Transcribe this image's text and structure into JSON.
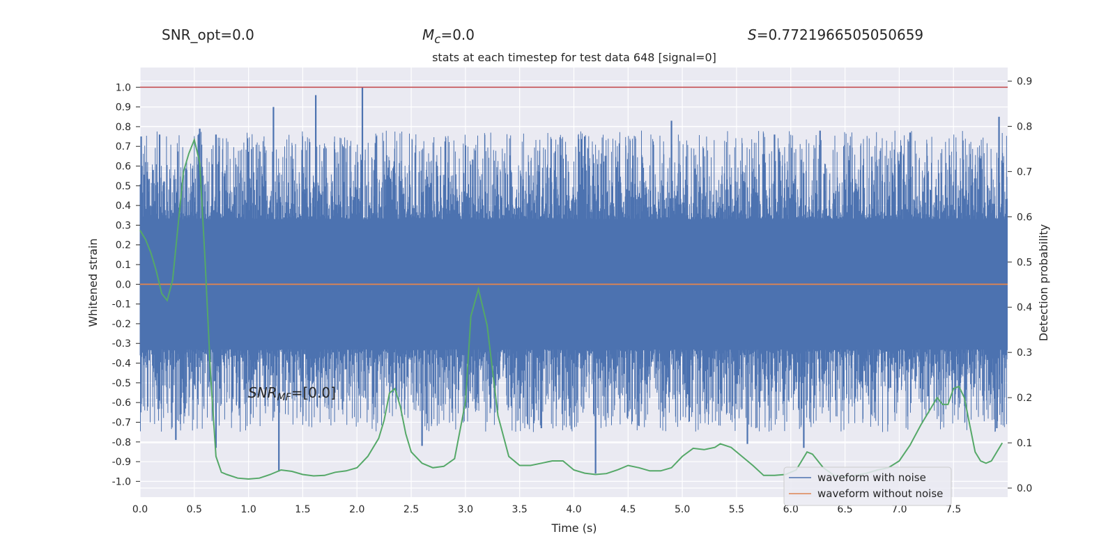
{
  "header": {
    "snr_opt": "SNR_opt=0.0",
    "mc_symbol": "M",
    "mc_sub": "c",
    "mc_value": "=0.0",
    "s_symbol": "S",
    "s_value": "=0.7721966505050659"
  },
  "chart_data": {
    "type": "line",
    "title": "stats at each timestep for test data 648 [signal=0]",
    "xlabel": "Time (s)",
    "ylabel_left": "Whitened strain",
    "ylabel_right": "Detection probability",
    "xlim": [
      0.0,
      8.0
    ],
    "ylim_left": [
      -1.08,
      1.1
    ],
    "ylim_right": [
      -0.02,
      0.93
    ],
    "x_ticks": [
      "0.0",
      "0.5",
      "1.0",
      "1.5",
      "2.0",
      "2.5",
      "3.0",
      "3.5",
      "4.0",
      "4.5",
      "5.0",
      "5.5",
      "6.0",
      "6.5",
      "7.0",
      "7.5"
    ],
    "y_ticks_left": [
      "1.0",
      "0.9",
      "0.8",
      "0.7",
      "0.6",
      "0.5",
      "0.4",
      "0.3",
      "0.2",
      "0.1",
      "0.0",
      "-0.1",
      "-0.2",
      "-0.3",
      "-0.4",
      "-0.5",
      "-0.6",
      "-0.7",
      "-0.8",
      "-0.9",
      "-1.0"
    ],
    "y_ticks_right": [
      "0.9",
      "0.8",
      "0.7",
      "0.6",
      "0.5",
      "0.4",
      "0.3",
      "0.2",
      "0.1",
      "0.0"
    ],
    "grid": true,
    "legend_position": "lower-right",
    "annotation": {
      "text_main": "SNR",
      "text_sub": "MF",
      "text_value": "=[0.0]",
      "x": 1.0,
      "y": -0.56
    },
    "threshold": {
      "y": 1.0,
      "color": "#c44e52"
    },
    "series": [
      {
        "name": "waveform with noise",
        "axis": "left",
        "color": "#4c72b0",
        "noise_band": 0.33,
        "peaks": [
          {
            "x": 0.01,
            "y": 0.75
          },
          {
            "x": 0.12,
            "y": 0.58
          },
          {
            "x": 0.18,
            "y": 0.76
          },
          {
            "x": 0.55,
            "y": 0.79
          },
          {
            "x": 0.7,
            "y": 0.76
          },
          {
            "x": 1.23,
            "y": 0.9
          },
          {
            "x": 1.62,
            "y": 0.96
          },
          {
            "x": 2.05,
            "y": 1.0
          },
          {
            "x": 4.1,
            "y": 0.75
          },
          {
            "x": 4.9,
            "y": 0.83
          },
          {
            "x": 5.85,
            "y": 0.76
          },
          {
            "x": 6.27,
            "y": 0.78
          },
          {
            "x": 7.1,
            "y": 0.77
          },
          {
            "x": 7.92,
            "y": 0.85
          },
          {
            "x": 0.33,
            "y": -0.79
          },
          {
            "x": 0.7,
            "y": -0.83
          },
          {
            "x": 1.28,
            "y": -0.95
          },
          {
            "x": 2.6,
            "y": -0.82
          },
          {
            "x": 4.2,
            "y": -0.96
          },
          {
            "x": 5.6,
            "y": -0.81
          },
          {
            "x": 6.12,
            "y": -0.83
          },
          {
            "x": 7.9,
            "y": -0.73
          },
          {
            "x": 3.7,
            "y": -0.73
          }
        ]
      },
      {
        "name": "waveform without noise",
        "axis": "left",
        "color": "#dd8452",
        "y": 0.0
      },
      {
        "name": "detection probability",
        "axis": "right",
        "color": "#55a868",
        "points": [
          [
            0.0,
            0.57
          ],
          [
            0.05,
            0.55
          ],
          [
            0.1,
            0.52
          ],
          [
            0.15,
            0.48
          ],
          [
            0.2,
            0.43
          ],
          [
            0.25,
            0.415
          ],
          [
            0.3,
            0.46
          ],
          [
            0.35,
            0.58
          ],
          [
            0.4,
            0.7
          ],
          [
            0.45,
            0.74
          ],
          [
            0.5,
            0.77
          ],
          [
            0.55,
            0.72
          ],
          [
            0.6,
            0.5
          ],
          [
            0.65,
            0.25
          ],
          [
            0.7,
            0.07
          ],
          [
            0.75,
            0.035
          ],
          [
            0.8,
            0.03
          ],
          [
            0.9,
            0.022
          ],
          [
            1.0,
            0.02
          ],
          [
            1.1,
            0.022
          ],
          [
            1.2,
            0.03
          ],
          [
            1.3,
            0.04
          ],
          [
            1.4,
            0.037
          ],
          [
            1.5,
            0.03
          ],
          [
            1.6,
            0.027
          ],
          [
            1.7,
            0.028
          ],
          [
            1.8,
            0.035
          ],
          [
            1.9,
            0.038
          ],
          [
            2.0,
            0.045
          ],
          [
            2.1,
            0.07
          ],
          [
            2.2,
            0.11
          ],
          [
            2.25,
            0.15
          ],
          [
            2.3,
            0.21
          ],
          [
            2.35,
            0.22
          ],
          [
            2.4,
            0.18
          ],
          [
            2.45,
            0.12
          ],
          [
            2.5,
            0.08
          ],
          [
            2.6,
            0.055
          ],
          [
            2.7,
            0.045
          ],
          [
            2.8,
            0.048
          ],
          [
            2.9,
            0.065
          ],
          [
            3.0,
            0.19
          ],
          [
            3.05,
            0.38
          ],
          [
            3.12,
            0.44
          ],
          [
            3.2,
            0.36
          ],
          [
            3.3,
            0.16
          ],
          [
            3.4,
            0.07
          ],
          [
            3.5,
            0.05
          ],
          [
            3.6,
            0.05
          ],
          [
            3.7,
            0.055
          ],
          [
            3.8,
            0.06
          ],
          [
            3.9,
            0.06
          ],
          [
            4.0,
            0.04
          ],
          [
            4.1,
            0.033
          ],
          [
            4.2,
            0.03
          ],
          [
            4.3,
            0.032
          ],
          [
            4.4,
            0.04
          ],
          [
            4.5,
            0.05
          ],
          [
            4.6,
            0.045
          ],
          [
            4.7,
            0.038
          ],
          [
            4.8,
            0.038
          ],
          [
            4.9,
            0.045
          ],
          [
            5.0,
            0.07
          ],
          [
            5.1,
            0.088
          ],
          [
            5.2,
            0.085
          ],
          [
            5.3,
            0.09
          ],
          [
            5.35,
            0.098
          ],
          [
            5.45,
            0.09
          ],
          [
            5.55,
            0.07
          ],
          [
            5.65,
            0.05
          ],
          [
            5.75,
            0.028
          ],
          [
            5.85,
            0.028
          ],
          [
            5.95,
            0.03
          ],
          [
            6.05,
            0.04
          ],
          [
            6.15,
            0.08
          ],
          [
            6.2,
            0.075
          ],
          [
            6.3,
            0.045
          ],
          [
            6.4,
            0.028
          ],
          [
            6.5,
            0.025
          ],
          [
            6.6,
            0.028
          ],
          [
            6.7,
            0.033
          ],
          [
            6.8,
            0.04
          ],
          [
            6.9,
            0.045
          ],
          [
            7.0,
            0.06
          ],
          [
            7.1,
            0.095
          ],
          [
            7.2,
            0.14
          ],
          [
            7.3,
            0.18
          ],
          [
            7.35,
            0.2
          ],
          [
            7.4,
            0.185
          ],
          [
            7.45,
            0.185
          ],
          [
            7.5,
            0.22
          ],
          [
            7.55,
            0.225
          ],
          [
            7.6,
            0.2
          ],
          [
            7.65,
            0.14
          ],
          [
            7.7,
            0.08
          ],
          [
            7.75,
            0.06
          ],
          [
            7.8,
            0.055
          ],
          [
            7.85,
            0.06
          ],
          [
            7.9,
            0.08
          ],
          [
            7.95,
            0.1
          ]
        ]
      }
    ]
  }
}
